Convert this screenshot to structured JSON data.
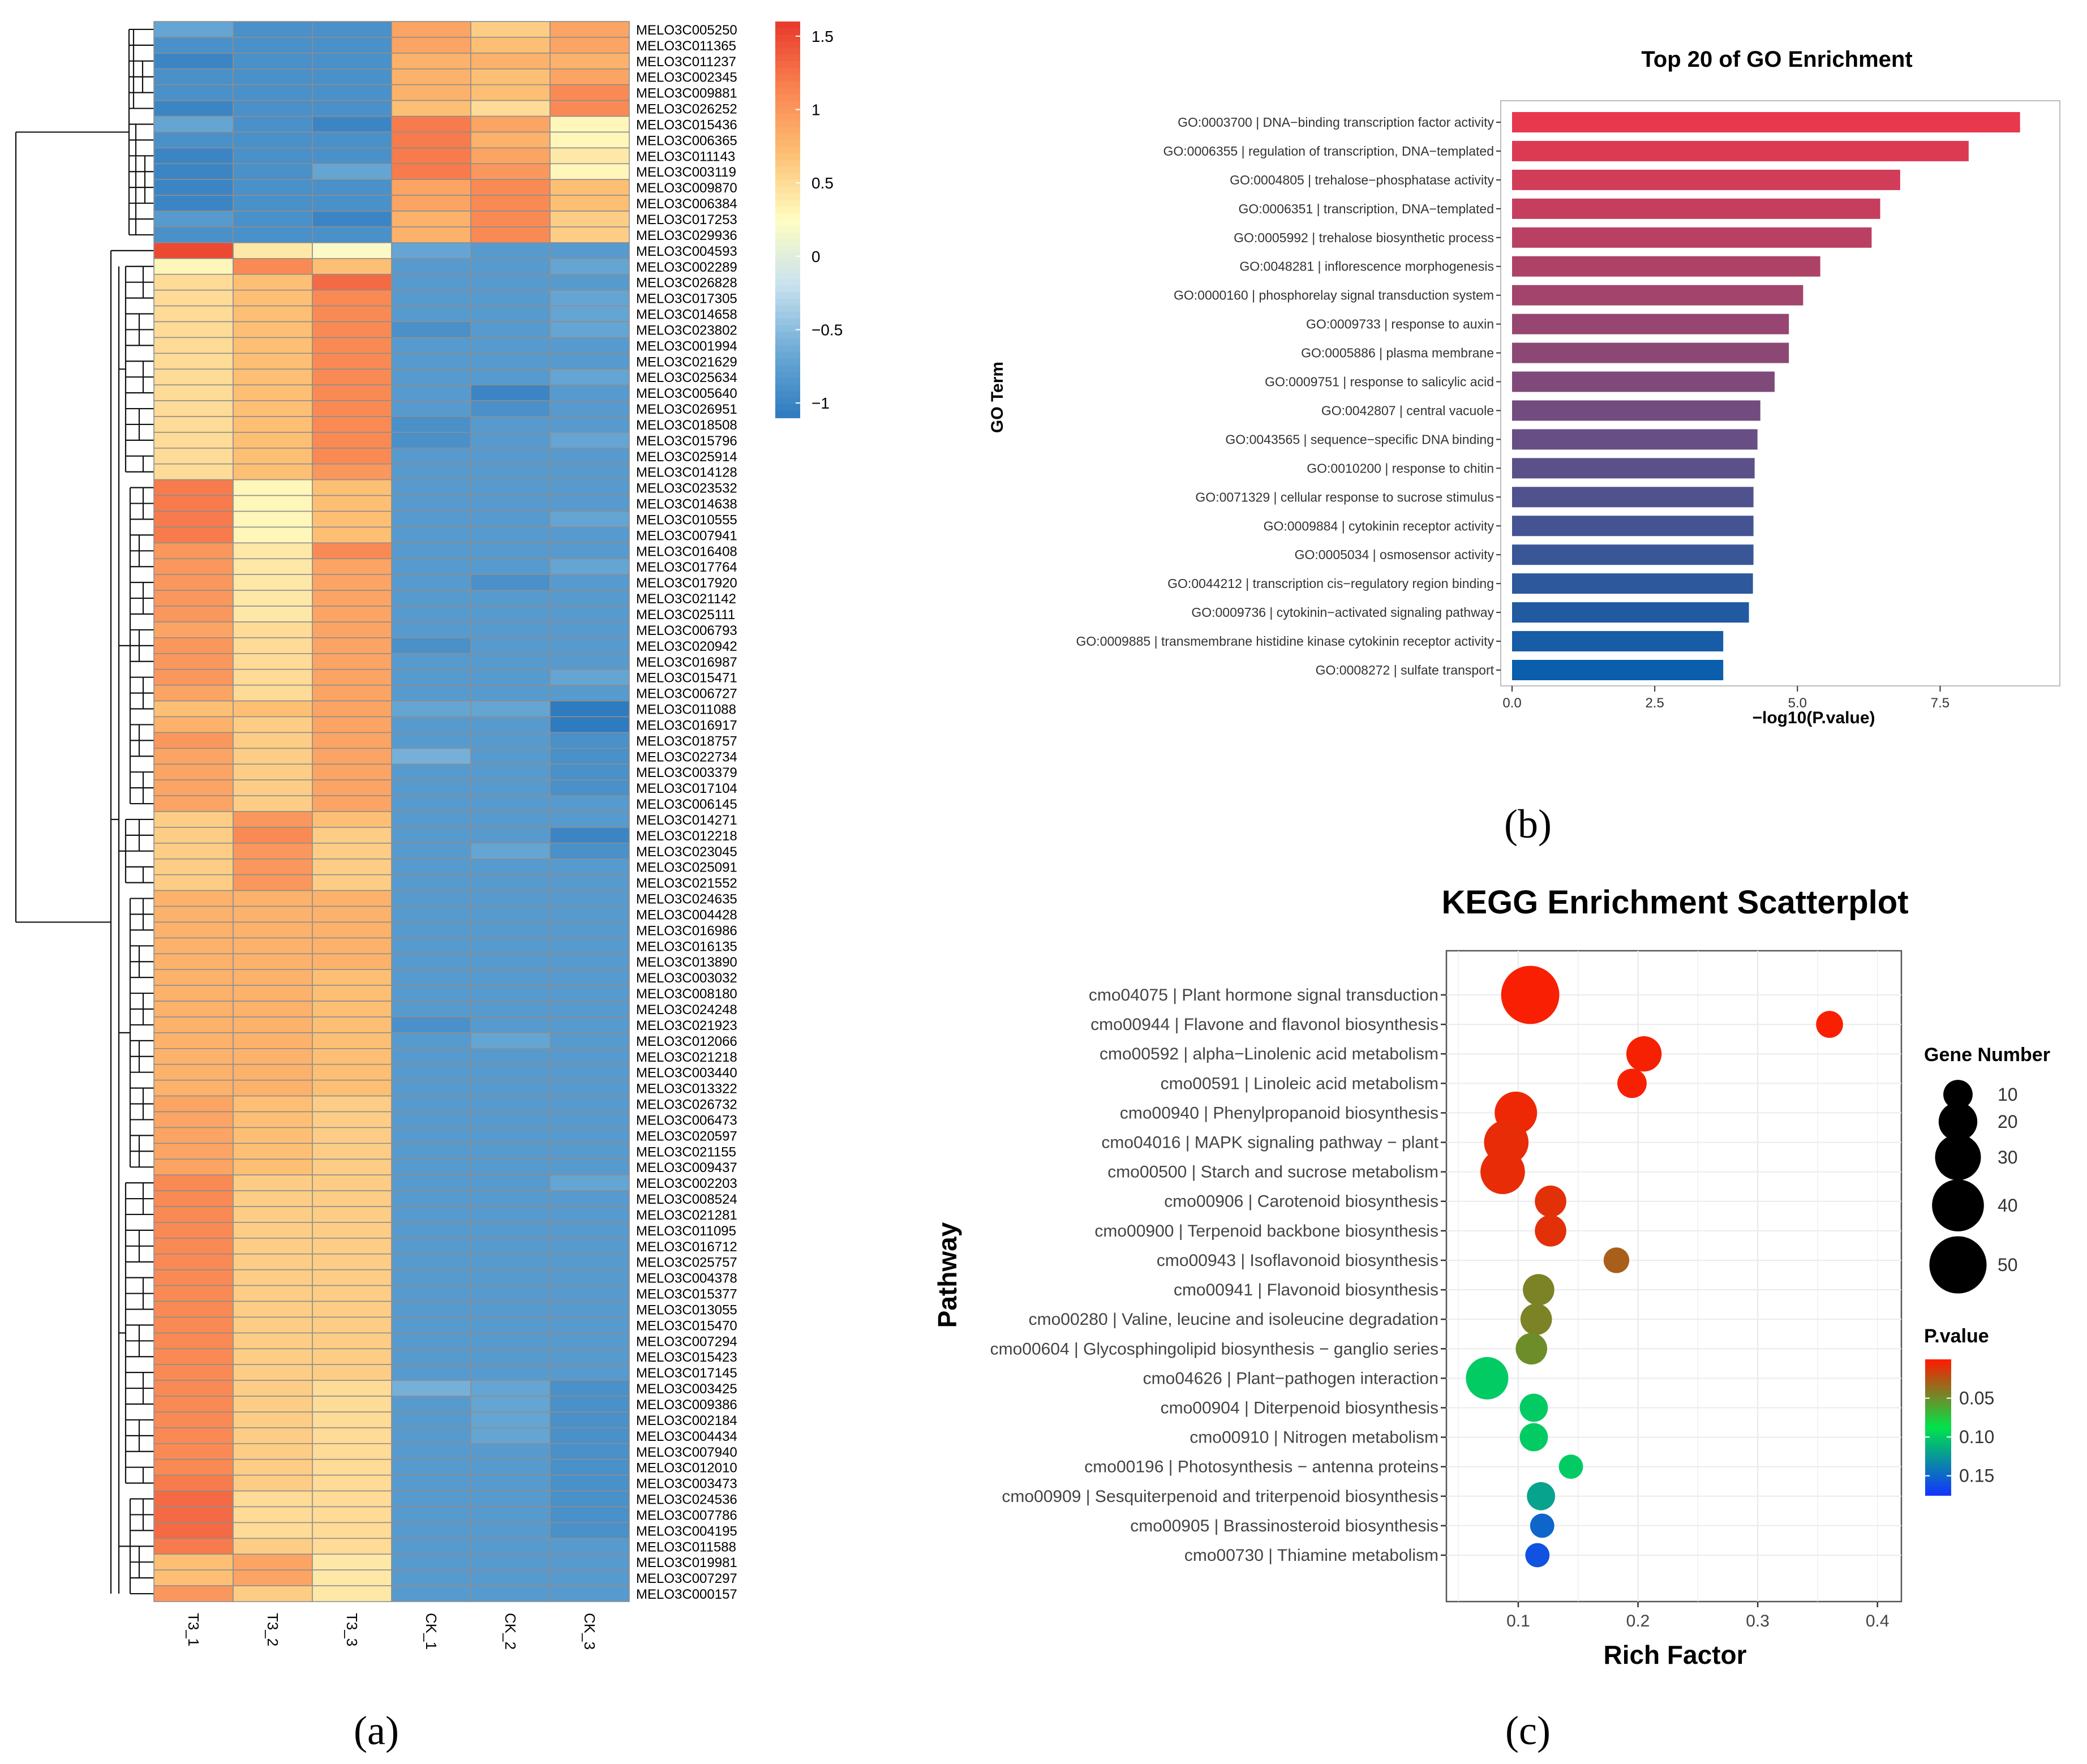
{
  "colors": {
    "heatmap_scale": [
      "#2e7bbf",
      "#6caad6",
      "#c8e2ef",
      "#fffdc2",
      "#fdbf73",
      "#f98350",
      "#e8382b"
    ],
    "grid": "#8e8e8e",
    "go_bar_scale": [
      "#e8384e",
      "#0a5eab"
    ],
    "pvalue_scale": [
      "#ff1a00",
      "#00e44a",
      "#1434ff"
    ],
    "panel_bg": "#ffffff",
    "gridline": "#ebebeb"
  },
  "panel_labels": [
    "(a)",
    "(b)",
    "(c)"
  ],
  "chart_data": [
    {
      "type": "heatmap",
      "title": "",
      "columns": [
        "T3_1",
        "T3_2",
        "T3_3",
        "CK_1",
        "CK_2",
        "CK_3"
      ],
      "rows": [
        "MELO3C005250",
        "MELO3C011365",
        "MELO3C011237",
        "MELO3C002345",
        "MELO3C009881",
        "MELO3C026252",
        "MELO3C015436",
        "MELO3C006365",
        "MELO3C011143",
        "MELO3C003119",
        "MELO3C009870",
        "MELO3C006384",
        "MELO3C017253",
        "MELO3C029936",
        "MELO3C004593",
        "MELO3C002289",
        "MELO3C026828",
        "MELO3C017305",
        "MELO3C014658",
        "MELO3C023802",
        "MELO3C001994",
        "MELO3C021629",
        "MELO3C025634",
        "MELO3C005640",
        "MELO3C026951",
        "MELO3C018508",
        "MELO3C015796",
        "MELO3C025914",
        "MELO3C014128",
        "MELO3C023532",
        "MELO3C014638",
        "MELO3C010555",
        "MELO3C007941",
        "MELO3C016408",
        "MELO3C017764",
        "MELO3C017920",
        "MELO3C021142",
        "MELO3C025111",
        "MELO3C006793",
        "MELO3C020942",
        "MELO3C016987",
        "MELO3C015471",
        "MELO3C006727",
        "MELO3C011088",
        "MELO3C016917",
        "MELO3C018757",
        "MELO3C022734",
        "MELO3C003379",
        "MELO3C017104",
        "MELO3C006145",
        "MELO3C014271",
        "MELO3C012218",
        "MELO3C023045",
        "MELO3C025091",
        "MELO3C021552",
        "MELO3C024635",
        "MELO3C004428",
        "MELO3C016986",
        "MELO3C016135",
        "MELO3C013890",
        "MELO3C003032",
        "MELO3C008180",
        "MELO3C024248",
        "MELO3C021923",
        "MELO3C012066",
        "MELO3C021218",
        "MELO3C003440",
        "MELO3C013322",
        "MELO3C026732",
        "MELO3C006473",
        "MELO3C020597",
        "MELO3C021155",
        "MELO3C009437",
        "MELO3C002203",
        "MELO3C008524",
        "MELO3C021281",
        "MELO3C011095",
        "MELO3C016712",
        "MELO3C025757",
        "MELO3C004378",
        "MELO3C015377",
        "MELO3C013055",
        "MELO3C015470",
        "MELO3C007294",
        "MELO3C015423",
        "MELO3C017145",
        "MELO3C003425",
        "MELO3C009386",
        "MELO3C002184",
        "MELO3C004434",
        "MELO3C007940",
        "MELO3C012010",
        "MELO3C003473",
        "MELO3C024536",
        "MELO3C007786",
        "MELO3C004195",
        "MELO3C011588",
        "MELO3C019981",
        "MELO3C007297",
        "MELO3C000157"
      ],
      "values": [
        [
          -0.7,
          -0.9,
          -0.9,
          0.9,
          0.6,
          0.9
        ],
        [
          -0.9,
          -0.9,
          -0.9,
          0.9,
          0.7,
          0.9
        ],
        [
          -1.0,
          -0.9,
          -0.9,
          0.8,
          0.8,
          0.8
        ],
        [
          -0.9,
          -0.9,
          -0.9,
          0.8,
          0.7,
          0.9
        ],
        [
          -0.9,
          -0.9,
          -0.9,
          0.8,
          0.7,
          1.1
        ],
        [
          -1.0,
          -0.9,
          -0.9,
          0.7,
          0.5,
          1.1
        ],
        [
          -0.7,
          -0.9,
          -1.0,
          1.2,
          0.9,
          0.3
        ],
        [
          -0.9,
          -0.9,
          -0.9,
          1.2,
          0.8,
          0.3
        ],
        [
          -1.0,
          -0.9,
          -0.9,
          1.2,
          0.9,
          0.4
        ],
        [
          -1.0,
          -0.9,
          -0.7,
          1.2,
          1.0,
          0.3
        ],
        [
          -1.0,
          -0.9,
          -0.9,
          0.9,
          1.1,
          0.7
        ],
        [
          -1.0,
          -0.9,
          -0.9,
          0.9,
          1.1,
          0.7
        ],
        [
          -0.8,
          -0.9,
          -1.0,
          0.8,
          1.1,
          0.6
        ],
        [
          -0.9,
          -0.9,
          -0.9,
          0.8,
          1.1,
          0.6
        ],
        [
          1.5,
          0.4,
          0.2,
          -0.7,
          -0.8,
          -0.8
        ],
        [
          0.3,
          1.1,
          0.7,
          -0.8,
          -0.8,
          -0.7
        ],
        [
          0.5,
          0.7,
          1.3,
          -0.8,
          -0.8,
          -0.8
        ],
        [
          0.5,
          0.7,
          1.1,
          -0.8,
          -0.8,
          -0.7
        ],
        [
          0.5,
          0.7,
          1.1,
          -0.8,
          -0.8,
          -0.7
        ],
        [
          0.5,
          0.7,
          1.1,
          -0.9,
          -0.8,
          -0.7
        ],
        [
          0.5,
          0.7,
          1.1,
          -0.8,
          -0.8,
          -0.8
        ],
        [
          0.5,
          0.7,
          1.1,
          -0.8,
          -0.8,
          -0.8
        ],
        [
          0.5,
          0.7,
          1.1,
          -0.8,
          -0.8,
          -0.7
        ],
        [
          0.5,
          0.7,
          1.1,
          -0.8,
          -1.0,
          -0.8
        ],
        [
          0.5,
          0.7,
          1.1,
          -0.8,
          -0.9,
          -0.8
        ],
        [
          0.5,
          0.7,
          1.1,
          -0.9,
          -0.8,
          -0.8
        ],
        [
          0.5,
          0.7,
          1.1,
          -0.9,
          -0.8,
          -0.7
        ],
        [
          0.5,
          0.7,
          1.1,
          -0.8,
          -0.8,
          -0.8
        ],
        [
          0.5,
          0.7,
          1.0,
          -0.8,
          -0.8,
          -0.8
        ],
        [
          1.2,
          0.3,
          0.7,
          -0.8,
          -0.8,
          -0.8
        ],
        [
          1.2,
          0.3,
          0.7,
          -0.8,
          -0.8,
          -0.8
        ],
        [
          1.2,
          0.3,
          0.7,
          -0.8,
          -0.8,
          -0.7
        ],
        [
          1.2,
          0.3,
          0.7,
          -0.8,
          -0.8,
          -0.8
        ],
        [
          1.0,
          0.4,
          1.1,
          -0.8,
          -0.8,
          -0.8
        ],
        [
          1.0,
          0.4,
          0.9,
          -0.8,
          -0.8,
          -0.7
        ],
        [
          1.0,
          0.4,
          0.9,
          -0.8,
          -0.9,
          -0.8
        ],
        [
          1.0,
          0.4,
          0.9,
          -0.8,
          -0.8,
          -0.8
        ],
        [
          1.0,
          0.4,
          0.9,
          -0.8,
          -0.8,
          -0.8
        ],
        [
          0.9,
          0.5,
          0.9,
          -0.8,
          -0.8,
          -0.8
        ],
        [
          1.0,
          0.5,
          0.9,
          -0.9,
          -0.8,
          -0.8
        ],
        [
          1.0,
          0.5,
          0.9,
          -0.8,
          -0.8,
          -0.8
        ],
        [
          1.0,
          0.5,
          0.9,
          -0.8,
          -0.8,
          -0.7
        ],
        [
          0.9,
          0.5,
          0.9,
          -0.8,
          -0.8,
          -0.8
        ],
        [
          0.7,
          0.7,
          0.9,
          -0.7,
          -0.7,
          -1.1
        ],
        [
          0.8,
          0.6,
          0.9,
          -0.8,
          -0.8,
          -1.1
        ],
        [
          1.0,
          0.6,
          0.9,
          -0.8,
          -0.8,
          -0.9
        ],
        [
          0.9,
          0.6,
          0.9,
          -0.6,
          -0.8,
          -0.9
        ],
        [
          0.9,
          0.6,
          0.9,
          -0.8,
          -0.8,
          -0.9
        ],
        [
          0.9,
          0.6,
          0.9,
          -0.8,
          -0.8,
          -0.9
        ],
        [
          0.9,
          0.6,
          0.9,
          -0.8,
          -0.8,
          -0.8
        ],
        [
          0.6,
          1.0,
          0.7,
          -0.8,
          -0.8,
          -0.8
        ],
        [
          0.6,
          1.1,
          0.6,
          -0.8,
          -0.8,
          -1.0
        ],
        [
          0.6,
          1.0,
          0.6,
          -0.8,
          -0.7,
          -0.9
        ],
        [
          0.6,
          1.0,
          0.6,
          -0.8,
          -0.8,
          -0.8
        ],
        [
          0.6,
          1.0,
          0.6,
          -0.8,
          -0.8,
          -0.8
        ],
        [
          0.8,
          0.8,
          0.8,
          -0.8,
          -0.8,
          -0.8
        ],
        [
          0.8,
          0.8,
          0.8,
          -0.8,
          -0.8,
          -0.8
        ],
        [
          0.8,
          0.8,
          0.8,
          -0.8,
          -0.8,
          -0.8
        ],
        [
          0.8,
          0.8,
          0.8,
          -0.8,
          -0.8,
          -0.8
        ],
        [
          0.8,
          0.8,
          0.8,
          -0.8,
          -0.8,
          -0.8
        ],
        [
          0.8,
          0.8,
          0.7,
          -0.8,
          -0.8,
          -0.8
        ],
        [
          0.8,
          0.8,
          0.7,
          -0.8,
          -0.8,
          -0.8
        ],
        [
          0.8,
          0.8,
          0.7,
          -0.8,
          -0.8,
          -0.8
        ],
        [
          0.8,
          0.8,
          0.7,
          -0.9,
          -0.8,
          -0.8
        ],
        [
          0.8,
          0.8,
          0.7,
          -0.8,
          -0.7,
          -0.8
        ],
        [
          0.8,
          0.8,
          0.7,
          -0.8,
          -0.8,
          -0.8
        ],
        [
          0.8,
          0.8,
          0.7,
          -0.8,
          -0.8,
          -0.8
        ],
        [
          0.8,
          0.8,
          0.7,
          -0.8,
          -0.8,
          -0.8
        ],
        [
          0.9,
          0.7,
          0.6,
          -0.8,
          -0.8,
          -0.8
        ],
        [
          0.9,
          0.7,
          0.6,
          -0.8,
          -0.8,
          -0.8
        ],
        [
          0.9,
          0.7,
          0.6,
          -0.8,
          -0.8,
          -0.8
        ],
        [
          0.9,
          0.7,
          0.6,
          -0.8,
          -0.8,
          -0.8
        ],
        [
          0.9,
          0.7,
          0.6,
          -0.8,
          -0.8,
          -0.8
        ],
        [
          1.1,
          0.6,
          0.6,
          -0.8,
          -0.8,
          -0.7
        ],
        [
          1.1,
          0.6,
          0.6,
          -0.8,
          -0.8,
          -0.8
        ],
        [
          1.1,
          0.6,
          0.6,
          -0.8,
          -0.8,
          -0.8
        ],
        [
          1.1,
          0.6,
          0.6,
          -0.8,
          -0.8,
          -0.8
        ],
        [
          1.1,
          0.6,
          0.6,
          -0.8,
          -0.8,
          -0.8
        ],
        [
          1.1,
          0.6,
          0.6,
          -0.8,
          -0.8,
          -0.8
        ],
        [
          1.1,
          0.6,
          0.6,
          -0.8,
          -0.8,
          -0.8
        ],
        [
          1.1,
          0.6,
          0.6,
          -0.8,
          -0.8,
          -0.8
        ],
        [
          1.1,
          0.6,
          0.6,
          -0.8,
          -0.8,
          -0.8
        ],
        [
          1.1,
          0.6,
          0.6,
          -0.8,
          -0.8,
          -0.8
        ],
        [
          1.1,
          0.6,
          0.6,
          -0.8,
          -0.8,
          -0.8
        ],
        [
          1.1,
          0.6,
          0.6,
          -0.8,
          -0.8,
          -0.8
        ],
        [
          1.1,
          0.6,
          0.6,
          -0.8,
          -0.8,
          -0.8
        ],
        [
          1.1,
          0.6,
          0.5,
          -0.6,
          -0.7,
          -0.9
        ],
        [
          1.1,
          0.6,
          0.5,
          -0.8,
          -0.7,
          -0.9
        ],
        [
          1.1,
          0.6,
          0.5,
          -0.8,
          -0.7,
          -0.9
        ],
        [
          1.1,
          0.6,
          0.5,
          -0.8,
          -0.7,
          -0.9
        ],
        [
          1.1,
          0.6,
          0.5,
          -0.8,
          -0.8,
          -0.9
        ],
        [
          1.1,
          0.6,
          0.5,
          -0.8,
          -0.8,
          -0.9
        ],
        [
          1.2,
          0.6,
          0.5,
          -0.8,
          -0.8,
          -0.9
        ],
        [
          1.3,
          0.5,
          0.5,
          -0.8,
          -0.8,
          -0.9
        ],
        [
          1.3,
          0.5,
          0.5,
          -0.8,
          -0.8,
          -0.9
        ],
        [
          1.3,
          0.5,
          0.5,
          -0.8,
          -0.8,
          -0.9
        ],
        [
          1.2,
          0.6,
          0.5,
          -0.8,
          -0.8,
          -0.8
        ],
        [
          0.7,
          0.9,
          0.4,
          -0.8,
          -0.8,
          -0.8
        ],
        [
          0.7,
          0.9,
          0.4,
          -0.8,
          -0.8,
          -0.8
        ],
        [
          1.0,
          0.6,
          0.4,
          -0.8,
          -0.8,
          -0.8
        ]
      ],
      "colorbar": {
        "ticks": [
          1.5,
          1,
          0.5,
          0,
          -0.5,
          -1
        ],
        "tick_labels": [
          "1.5",
          "1",
          "0.5",
          "0",
          "−0.5",
          "−1"
        ],
        "range": [
          -1.1,
          1.6
        ]
      },
      "row_dendrogram": true
    },
    {
      "type": "bar",
      "orientation": "horizontal",
      "title": "Top 20 of GO Enrichment",
      "xlabel": "−log10(P.value)",
      "ylabel": "GO Term",
      "xlim": [
        0,
        9.3
      ],
      "x_ticks": [
        0,
        2.5,
        5,
        7.5
      ],
      "x_tick_labels": [
        "0.0",
        "2.5",
        "5.0",
        "7.5"
      ],
      "categories": [
        "GO:0003700 | DNA−binding transcription factor activity",
        "GO:0006355 | regulation of transcription, DNA−templated",
        "GO:0004805 | trehalose−phosphatase activity",
        "GO:0006351 | transcription, DNA−templated",
        "GO:0005992 | trehalose biosynthetic process",
        "GO:0048281 | inflorescence morphogenesis",
        "GO:0000160 | phosphorelay signal transduction system",
        "GO:0009733 | response to auxin",
        "GO:0005886 | plasma membrane",
        "GO:0009751 | response to salicylic acid",
        "GO:0042807 | central vacuole",
        "GO:0043565 | sequence−specific DNA binding",
        "GO:0010200 | response to chitin",
        "GO:0071329 | cellular response to sucrose stimulus",
        "GO:0009884 | cytokinin receptor activity",
        "GO:0005034 | osmosensor activity",
        "GO:0044212 | transcription cis−regulatory region binding",
        "GO:0009736 | cytokinin−activated signaling pathway",
        "GO:0009885 | transmembrane histidine kinase cytokinin receptor activity",
        "GO:0008272 | sulfate transport"
      ],
      "values": [
        8.9,
        8.0,
        6.8,
        6.45,
        6.3,
        5.4,
        5.1,
        4.85,
        4.85,
        4.6,
        4.35,
        4.3,
        4.25,
        4.23,
        4.23,
        4.23,
        4.22,
        4.15,
        3.7,
        3.7
      ]
    },
    {
      "type": "scatter",
      "title": "KEGG Enrichment Scatterplot",
      "xlabel": "Rich Factor",
      "ylabel": "Pathway",
      "xlim": [
        0.04,
        0.42
      ],
      "x_ticks": [
        0.1,
        0.2,
        0.3,
        0.4
      ],
      "x_tick_labels": [
        "0.1",
        "0.2",
        "0.3",
        "0.4"
      ],
      "pathways": [
        "cmo04075 | Plant hormone signal transduction",
        "cmo00944 | Flavone and flavonol biosynthesis",
        "cmo00592 | alpha−Linolenic acid metabolism",
        "cmo00591 | Linoleic acid metabolism",
        "cmo00940 | Phenylpropanoid biosynthesis",
        "cmo04016 | MAPK signaling pathway − plant",
        "cmo00500 | Starch and sucrose metabolism",
        "cmo00906 | Carotenoid biosynthesis",
        "cmo00900 | Terpenoid backbone biosynthesis",
        "cmo00943 | Isoflavonoid biosynthesis",
        "cmo00941 | Flavonoid biosynthesis",
        "cmo00280 | Valine, leucine and isoleucine degradation",
        "cmo00604 | Glycosphingolipid biosynthesis − ganglio series",
        "cmo04626 | Plant−pathogen interaction",
        "cmo00904 | Diterpenoid biosynthesis",
        "cmo00910 | Nitrogen metabolism",
        "cmo00196 | Photosynthesis − antenna proteins",
        "cmo00909 | Sesquiterpenoid and triterpenoid biosynthesis",
        "cmo00905 | Brassinosteroid biosynthesis",
        "cmo00730 | Thiamine metabolism"
      ],
      "rich_factor": [
        0.11,
        0.36,
        0.205,
        0.195,
        0.098,
        0.09,
        0.087,
        0.127,
        0.127,
        0.182,
        0.117,
        0.115,
        0.111,
        0.074,
        0.113,
        0.113,
        0.144,
        0.119,
        0.12,
        0.116
      ],
      "gene_number": [
        52,
        8,
        16,
        10,
        25,
        28,
        28,
        12,
        12,
        7,
        12,
        12,
        12,
        25,
        9,
        9,
        6,
        9,
        6,
        6
      ],
      "p_value": [
        0.002,
        0.002,
        0.003,
        0.003,
        0.006,
        0.008,
        0.008,
        0.01,
        0.01,
        0.03,
        0.045,
        0.045,
        0.05,
        0.1,
        0.1,
        0.1,
        0.1,
        0.12,
        0.15,
        0.16
      ],
      "size_legend": {
        "title": "Gene Number",
        "labels": [
          "10",
          "20",
          "30",
          "40",
          "50"
        ],
        "values": [
          10,
          20,
          30,
          40,
          50
        ]
      },
      "color_legend": {
        "title": "P.value",
        "labels": [
          "0.05",
          "0.10",
          "0.15"
        ],
        "values": [
          0.05,
          0.1,
          0.15
        ],
        "range": [
          0,
          0.175
        ]
      }
    }
  ]
}
